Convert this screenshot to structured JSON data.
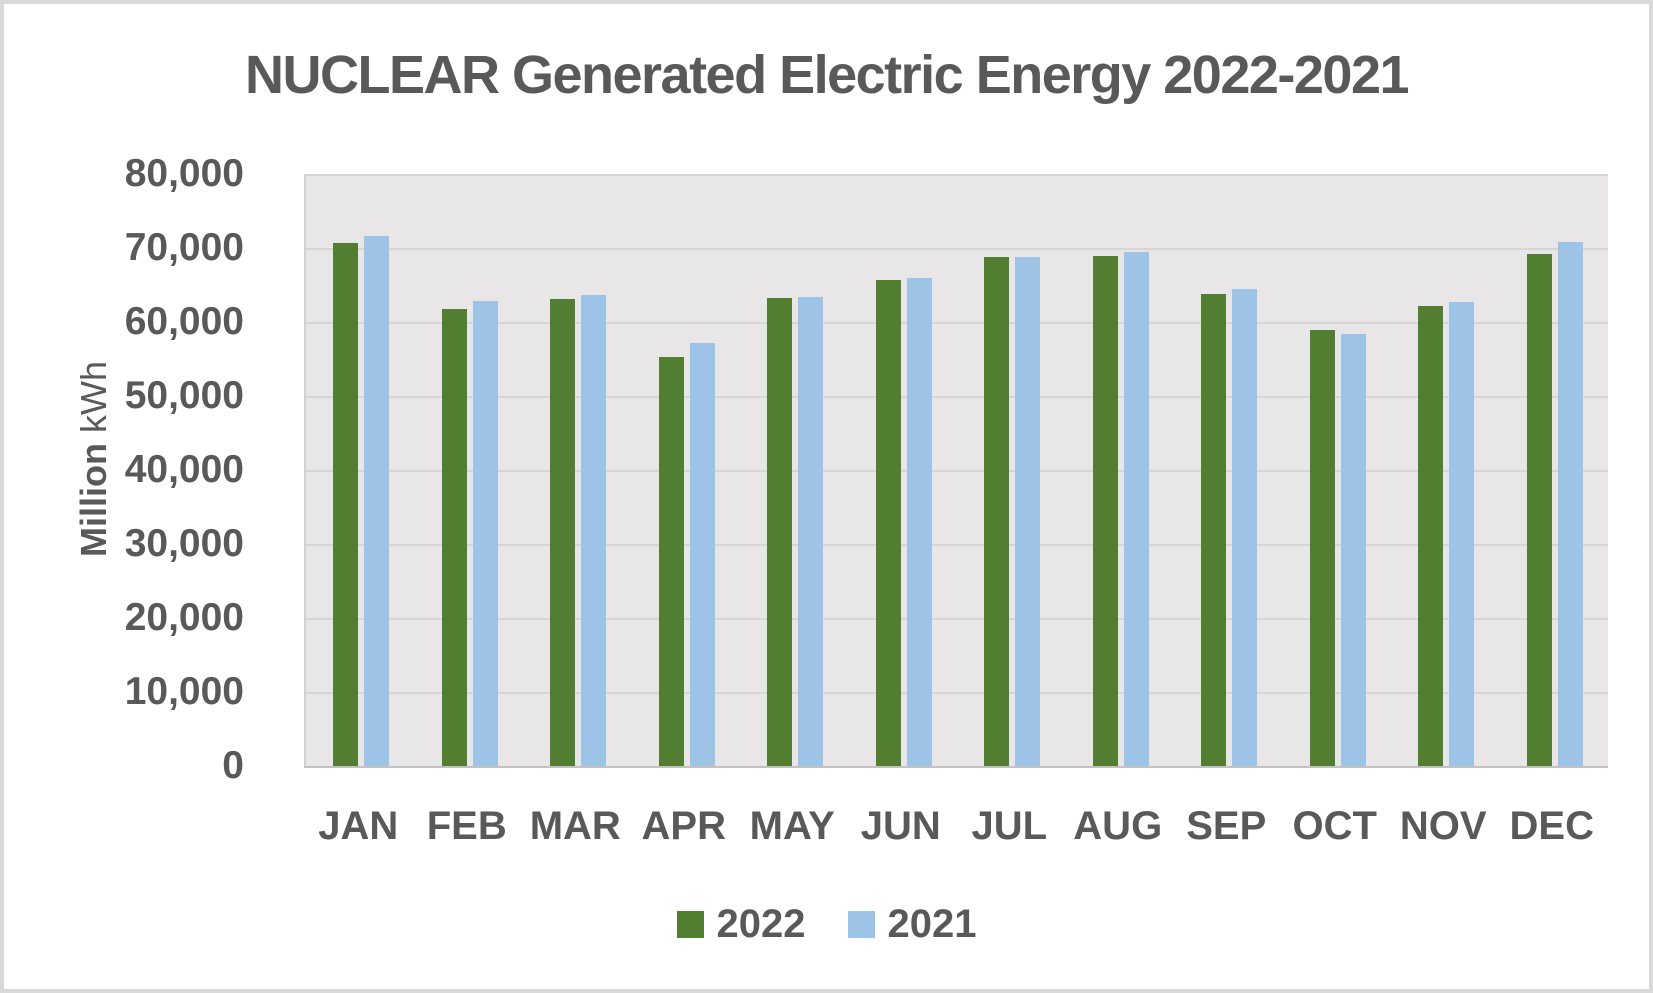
{
  "chart_data": {
    "type": "bar",
    "title": "NUCLEAR Generated Electric Energy 2022-2021",
    "ylabel": "Million kWh",
    "ylabel_bold": "Million",
    "ylabel_unit": "kWh",
    "xlabel": "",
    "categories": [
      "JAN",
      "FEB",
      "MAR",
      "APR",
      "MAY",
      "JUN",
      "JUL",
      "AUG",
      "SEP",
      "OCT",
      "NOV",
      "DEC"
    ],
    "series": [
      {
        "name": "2022",
        "color": "#527e32",
        "values": [
          70700,
          61800,
          63100,
          55300,
          63300,
          65700,
          68800,
          68900,
          63800,
          58900,
          62100,
          69200
        ]
      },
      {
        "name": "2021",
        "color": "#9dc3e6",
        "values": [
          71600,
          62800,
          63700,
          57100,
          63400,
          66000,
          68800,
          69500,
          64500,
          58400,
          62700,
          70800
        ]
      }
    ],
    "ylim": [
      0,
      80000
    ],
    "yticks": [
      0,
      10000,
      20000,
      30000,
      40000,
      50000,
      60000,
      70000,
      80000
    ],
    "ytick_labels": [
      "0",
      "10,000",
      "20,000",
      "30,000",
      "40,000",
      "50,000",
      "60,000",
      "70,000",
      "80,000"
    ],
    "grid": "horizontal",
    "legend_position": "bottom",
    "colors": {
      "text": "#595959",
      "plot_background": "#e8e6e7",
      "gridline": "#d7d5d6",
      "axis_line": "#c3c1c2",
      "page_border": "#d9d9d9"
    }
  }
}
